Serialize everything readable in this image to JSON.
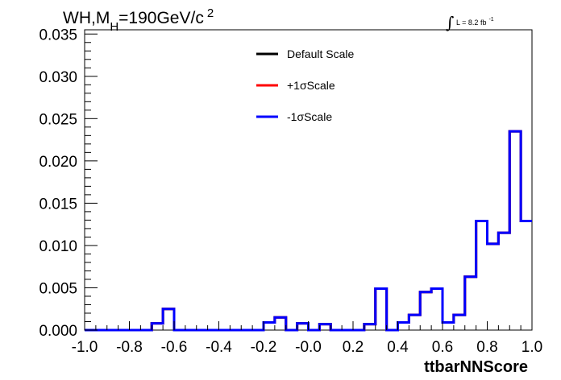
{
  "chart_data": {
    "type": "histogram",
    "title": {
      "main": "WH,M",
      "subscript": "H",
      "rest": "=190GeV/c",
      "superscript": "2"
    },
    "luminosity": {
      "integral_symbol": "∫",
      "text": "L = 8.2 fb",
      "superscript": "-1"
    },
    "xlabel": "ttbarNNScore",
    "ylabel": "",
    "xlim": [
      -1.0,
      1.0
    ],
    "ylim": [
      0.0,
      0.0355
    ],
    "x_tick_labels": [
      "-1.0",
      "-0.8",
      "-0.6",
      "-0.4",
      "-0.2",
      "-0.0",
      "0.2",
      "0.4",
      "0.6",
      "0.8",
      "1.0"
    ],
    "y_tick_labels": [
      "0.000",
      "0.005",
      "0.010",
      "0.015",
      "0.020",
      "0.025",
      "0.030",
      "0.035"
    ],
    "bin_edges": [
      -1.0,
      -0.95,
      -0.9,
      -0.85,
      -0.8,
      -0.75,
      -0.7,
      -0.65,
      -0.6,
      -0.55,
      -0.5,
      -0.45,
      -0.4,
      -0.35,
      -0.3,
      -0.25,
      -0.2,
      -0.15,
      -0.1,
      -0.05,
      0.0,
      0.05,
      0.1,
      0.15,
      0.2,
      0.25,
      0.3,
      0.35,
      0.4,
      0.45,
      0.5,
      0.55,
      0.6,
      0.65,
      0.7,
      0.75,
      0.8,
      0.85,
      0.9,
      0.95,
      1.0
    ],
    "series": [
      {
        "name": "Default Scale",
        "color": "#000000",
        "values": [
          0,
          0,
          0,
          0,
          0,
          0,
          0.0008,
          0.0025,
          0,
          0,
          0,
          0,
          0,
          0,
          0,
          0,
          0.0009,
          0.0015,
          0,
          0.0008,
          0,
          0.0007,
          0,
          0,
          0,
          0.0007,
          0.0049,
          0,
          0.0009,
          0.0018,
          0.0045,
          0.0049,
          0.0009,
          0.0018,
          0.0063,
          0.0129,
          0.0102,
          0.0115,
          0.0235,
          0.0129
        ]
      },
      {
        "name": "+1σScale",
        "color": "#ff0000",
        "values": [
          0,
          0,
          0,
          0,
          0,
          0,
          0.0008,
          0.0025,
          0,
          0,
          0,
          0,
          0,
          0,
          0,
          0,
          0.0009,
          0.0015,
          0,
          0.0008,
          0,
          0.0007,
          0,
          0,
          0,
          0.0007,
          0.0049,
          0,
          0.0009,
          0.0018,
          0.0045,
          0.0049,
          0.0009,
          0.0018,
          0.0063,
          0.0129,
          0.0102,
          0.0115,
          0.0235,
          0.0129
        ]
      },
      {
        "name": "-1σScale",
        "color": "#0000ff",
        "values": [
          0,
          0,
          0,
          0,
          0,
          0,
          0.0008,
          0.0025,
          0,
          0,
          0,
          0,
          0,
          0,
          0,
          0,
          0.0009,
          0.0015,
          0,
          0.0008,
          0,
          0.0007,
          0,
          0,
          0,
          0.0007,
          0.0049,
          0,
          0.0009,
          0.0018,
          0.0045,
          0.0049,
          0.0009,
          0.0018,
          0.0063,
          0.0129,
          0.0102,
          0.0115,
          0.0235,
          0.0129
        ]
      }
    ],
    "legend": {
      "position": "top-center"
    },
    "grid": false
  }
}
